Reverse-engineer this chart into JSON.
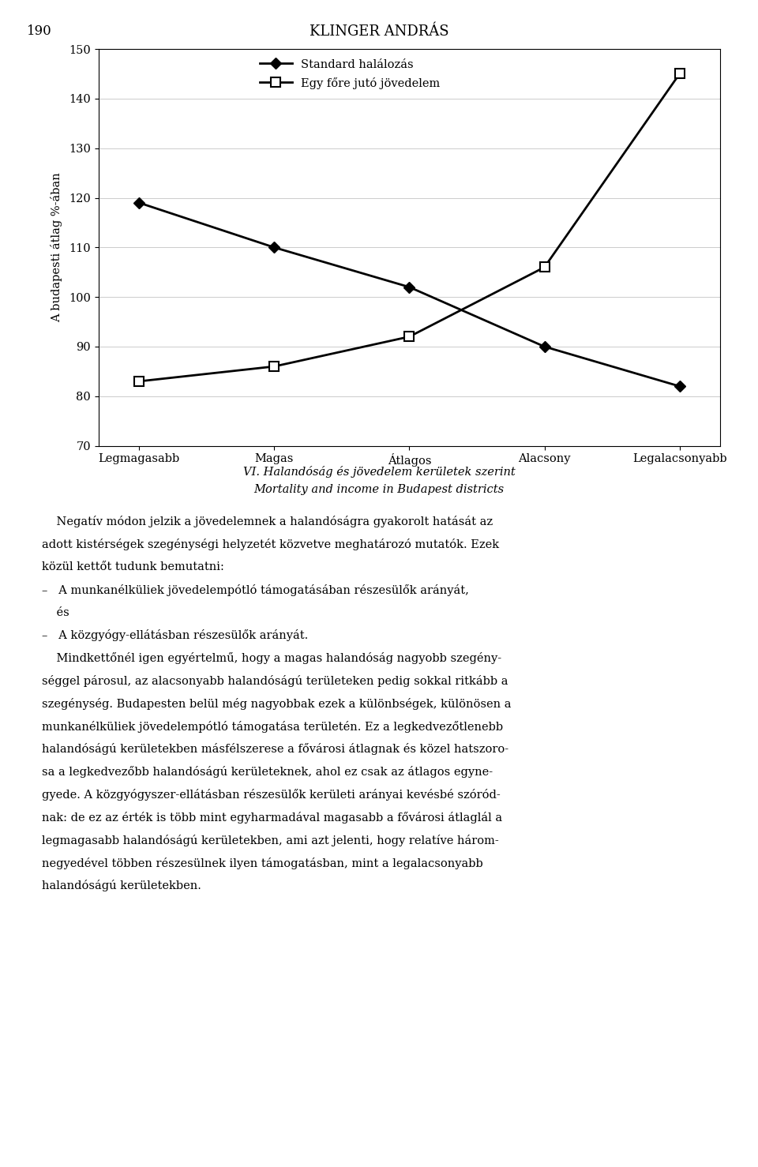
{
  "page_number": "190",
  "page_title": "KLINGER ANDRÁS",
  "categories": [
    "Legmagasabb",
    "Magas",
    "Átlagos",
    "Alacsony",
    "Legalacsonyabb"
  ],
  "series1_label": "Standard halálozás",
  "series1_values": [
    119,
    110,
    102,
    90,
    82
  ],
  "series2_label": "Egy főre jutó jövedelem",
  "series2_values": [
    83,
    86,
    92,
    106,
    145
  ],
  "ylabel": "A budapesti átlag %-ában",
  "ylim": [
    70,
    150
  ],
  "yticks": [
    70,
    80,
    90,
    100,
    110,
    120,
    130,
    140,
    150
  ],
  "chart_title_line1": "VI. Halandóság és jövedelem kerületek szerint",
  "chart_title_line2": "Mortality and income in Budapest districts",
  "line_color": "#000000",
  "background_color": "#ffffff",
  "grid_color": "#cccccc",
  "body_lines": [
    {
      "text": "    Negatív módon jelzik a jövedelemnek a halandóságra gyakorolt hatását az",
      "bold": false,
      "indent": "normal"
    },
    {
      "text": "adott kistérségek szegénységi helyzetét közvetve meghatározó mutatók. Ezek",
      "bold": false,
      "indent": "normal"
    },
    {
      "text": "közül kettőt tudunk bemutatni:",
      "bold": false,
      "indent": "normal"
    },
    {
      "text": "–   A munkanélküliek jövedelempótló támogatásában részesülők arányát,",
      "bold": false,
      "indent": "bullet"
    },
    {
      "text": "    és",
      "bold": false,
      "indent": "normal"
    },
    {
      "text": "–   A közgyógy-ellátásban részesülők arányát.",
      "bold": false,
      "indent": "bullet"
    },
    {
      "text": "    Mindkettőnél igen egyértelmű, hogy a magas halandóság nagyobb szegény-",
      "bold": false,
      "indent": "normal"
    },
    {
      "text": "séggel párosul, az alacsonyabb halandóságú területeken pedig sokkal ritkább a",
      "bold": false,
      "indent": "normal"
    },
    {
      "text": "szegénység. Budapesten belül még nagyobbak ezek a különbségek, különösen a",
      "bold": false,
      "indent": "normal"
    },
    {
      "text": "munkanélküliek jövedelempótló támogatása területén. Ez a legkedvezőtlenebb",
      "bold": false,
      "indent": "normal"
    },
    {
      "text": "halandóságú kerületekben másfélszerese a fővárosi átlagnak és közel hatszoro-",
      "bold": false,
      "indent": "normal"
    },
    {
      "text": "sa a legkedvezőbb halandóságú kerületeknek, ahol ez csak az átlagos egyne-",
      "bold": false,
      "indent": "normal"
    },
    {
      "text": "gyede. A közgyógyszer-ellátásban részesülők kerületi arányai kevésbé szóród-",
      "bold": false,
      "indent": "normal"
    },
    {
      "text": "nak: de ez az érték is több mint egyharmadával magasabb a fővárosi átlaglál a",
      "bold": false,
      "indent": "normal"
    },
    {
      "text": "legmagasabb halandóságú kerületekben, ami azt jelenti, hogy relatíve három-",
      "bold": false,
      "indent": "normal"
    },
    {
      "text": "negyedével többen részesülnek ilyen támogatásban, mint a legalacsonyabb",
      "bold": false,
      "indent": "normal"
    },
    {
      "text": "halandóságú kerületekben.",
      "bold": false,
      "indent": "normal"
    }
  ]
}
